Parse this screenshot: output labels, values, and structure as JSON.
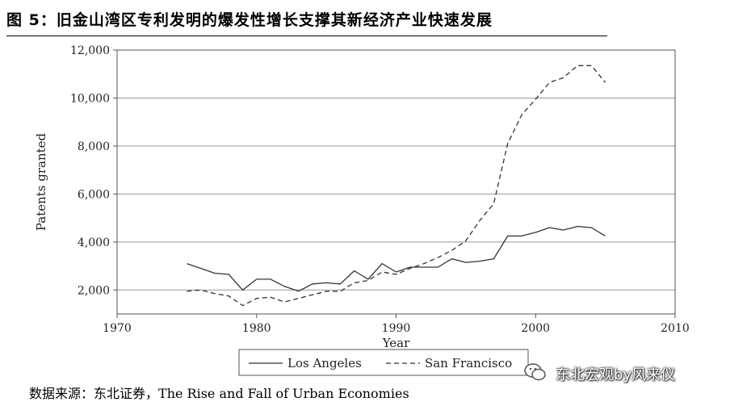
{
  "title": "图 5：旧金山湾区专利发明的爆发性增长支撑其新经济产业快速发展",
  "source": {
    "prefix": "数据来源：东北证券，",
    "text": "The Rise and Fall of Urban Economies"
  },
  "watermark": {
    "text": "东北宏观by风来仪",
    "icon": "wechat-icon"
  },
  "chart_data": {
    "type": "line",
    "xlabel": "Year",
    "ylabel": "Patents granted",
    "xlim": [
      1970,
      2010
    ],
    "ylim": [
      1000,
      12000
    ],
    "xticks": [
      1970,
      1980,
      1990,
      2000,
      2010
    ],
    "yticks": [
      2000,
      4000,
      6000,
      8000,
      10000,
      12000
    ],
    "xtick_labels": [
      "1970",
      "1980",
      "1990",
      "2000",
      "2010"
    ],
    "ytick_labels": [
      "2,000",
      "4,000",
      "6,000",
      "8,000",
      "10,000",
      "12,000"
    ],
    "grid": "horizontal",
    "legend_position": "bottom",
    "series": [
      {
        "name": "Los Angeles",
        "style": "solid",
        "color": "#333333",
        "x": [
          1975,
          1976,
          1977,
          1978,
          1979,
          1980,
          1981,
          1982,
          1983,
          1984,
          1985,
          1986,
          1987,
          1988,
          1989,
          1990,
          1991,
          1992,
          1993,
          1994,
          1995,
          1996,
          1997,
          1998,
          1999,
          2000,
          2001,
          2002,
          2003,
          2004,
          2005
        ],
        "y": [
          3100,
          2900,
          2700,
          2650,
          2000,
          2450,
          2450,
          2150,
          1950,
          2250,
          2300,
          2250,
          2800,
          2450,
          3100,
          2750,
          2950,
          2950,
          2950,
          3300,
          3150,
          3200,
          3300,
          4250,
          4250,
          4400,
          4600,
          4500,
          4650,
          4600,
          4250
        ]
      },
      {
        "name": "San Francisco",
        "style": "dashed",
        "color": "#333333",
        "x": [
          1975,
          1976,
          1977,
          1978,
          1979,
          1980,
          1981,
          1982,
          1983,
          1984,
          1985,
          1986,
          1987,
          1988,
          1989,
          1990,
          1991,
          1992,
          1993,
          1994,
          1995,
          1996,
          1997,
          1998,
          1999,
          2000,
          2001,
          2002,
          2003,
          2004,
          2005
        ],
        "y": [
          1950,
          2000,
          1850,
          1750,
          1350,
          1650,
          1700,
          1500,
          1650,
          1800,
          1950,
          1950,
          2300,
          2400,
          2750,
          2650,
          2900,
          3100,
          3350,
          3650,
          4050,
          4900,
          5600,
          8100,
          9300,
          9950,
          10650,
          10850,
          11350,
          11350,
          10650
        ]
      }
    ]
  }
}
